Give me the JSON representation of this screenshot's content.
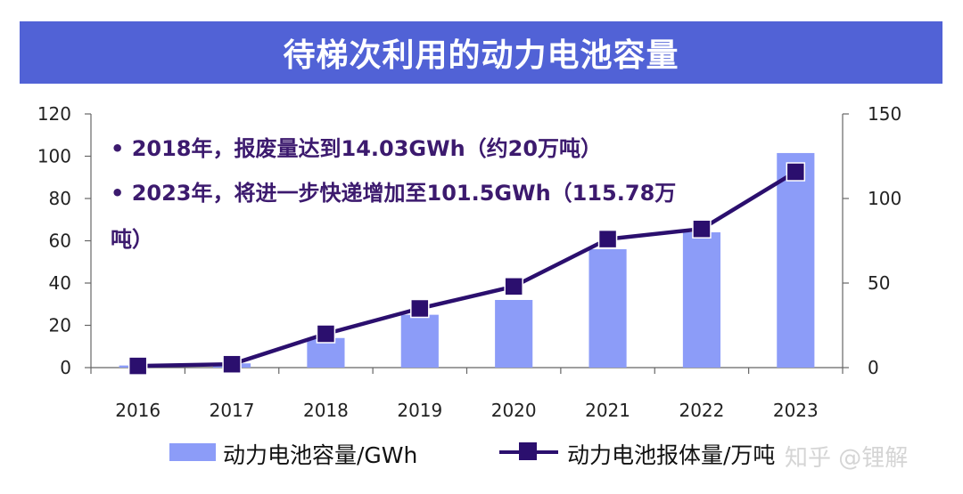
{
  "chart_data": {
    "type": "bar",
    "title": "待梯次利用的动力电池容量",
    "categories": [
      "2016",
      "2017",
      "2018",
      "2019",
      "2020",
      "2021",
      "2022",
      "2023"
    ],
    "series": [
      {
        "name": "动力电池容量/GWh",
        "type": "bar",
        "axis": "left",
        "color": "#8c9cf8",
        "values": [
          1,
          2,
          14,
          25,
          32,
          56,
          64,
          101.5
        ]
      },
      {
        "name": "动力电池报体量/万吨",
        "type": "line",
        "axis": "right",
        "color": "#2b0f6e",
        "values": [
          1,
          2,
          20,
          35,
          48,
          76,
          82,
          115.78
        ]
      }
    ],
    "y_left": {
      "min": 0,
      "max": 120,
      "ticks": [
        0,
        20,
        40,
        60,
        80,
        100,
        120
      ]
    },
    "y_right": {
      "min": 0,
      "max": 150,
      "ticks": [
        0,
        50,
        100,
        150
      ]
    },
    "annotations": [
      "•   2018年，报废量达到14.03GWh（约20万吨）",
      "•   2023年，将进一步快递增加至101.5GWh（115.78万",
      "      吨）"
    ],
    "legend_position": "bottom"
  },
  "watermark": "知乎 @锂解"
}
